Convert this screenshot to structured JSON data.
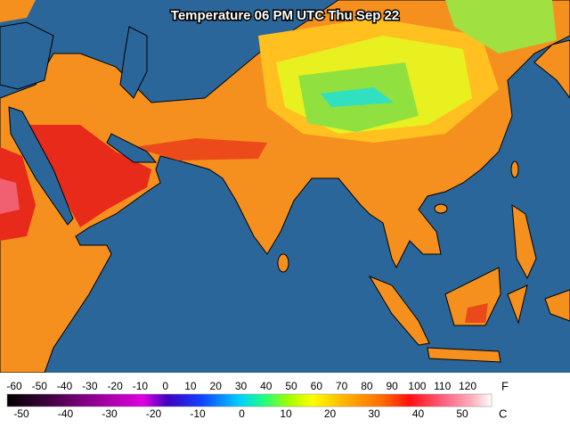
{
  "title": "Temperature 06 PM UTC Thu Sep 22",
  "legend": {
    "fahrenheit": {
      "unit": "F",
      "ticks": [
        -60,
        -50,
        -40,
        -30,
        -20,
        -10,
        0,
        10,
        20,
        30,
        40,
        50,
        60,
        70,
        80,
        90,
        100,
        110,
        120
      ]
    },
    "celsius": {
      "unit": "C",
      "ticks": [
        -50,
        -40,
        -30,
        -20,
        -10,
        0,
        10,
        20,
        30,
        40,
        50
      ]
    }
  }
}
